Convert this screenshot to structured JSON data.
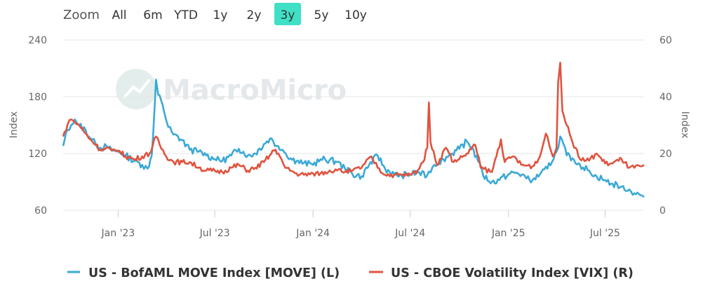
{
  "toolbar": {
    "zoom_label": "Zoom",
    "ranges": [
      "All",
      "6m",
      "YTD",
      "1y",
      "2y",
      "3y",
      "5y",
      "10y"
    ],
    "active_range": "3y"
  },
  "watermark": "MacroMicro",
  "colors": {
    "move": "#3aa9d6",
    "vix": "#e0533e",
    "active": "#3fe0c5"
  },
  "chart_data": {
    "type": "line",
    "y_left": {
      "title": "Index",
      "range": [
        60,
        240
      ],
      "ticks": [
        "60",
        "120",
        "180",
        "240"
      ]
    },
    "y_right": {
      "title": "Index",
      "range": [
        0,
        60
      ],
      "ticks": [
        "0",
        "20",
        "40",
        "60"
      ]
    },
    "x_range": [
      "2022-09-20",
      "2025-09-12"
    ],
    "x_ticks": [
      {
        "date": "2023-01-01",
        "label": "Jan '23"
      },
      {
        "date": "2023-07-01",
        "label": "Jul '23"
      },
      {
        "date": "2024-01-01",
        "label": "Jan '24"
      },
      {
        "date": "2024-07-01",
        "label": "Jul '24"
      },
      {
        "date": "2025-01-01",
        "label": "Jan '25"
      },
      {
        "date": "2025-07-01",
        "label": "Jul '25"
      }
    ],
    "grid": true,
    "legend_position": "bottom",
    "series": [
      {
        "name": "US - BofAML MOVE Index [MOVE] (L)",
        "axis": "left",
        "points": [
          [
            "2022-09-20",
            128
          ],
          [
            "2022-09-28",
            145
          ],
          [
            "2022-10-05",
            150
          ],
          [
            "2022-10-12",
            156
          ],
          [
            "2022-10-20",
            150
          ],
          [
            "2022-11-01",
            145
          ],
          [
            "2022-11-10",
            136
          ],
          [
            "2022-11-20",
            130
          ],
          [
            "2022-12-01",
            125
          ],
          [
            "2022-12-10",
            128
          ],
          [
            "2022-12-20",
            124
          ],
          [
            "2023-01-01",
            122
          ],
          [
            "2023-01-15",
            118
          ],
          [
            "2023-02-01",
            112
          ],
          [
            "2023-02-15",
            108
          ],
          [
            "2023-02-25",
            104
          ],
          [
            "2023-03-05",
            118
          ],
          [
            "2023-03-10",
            165
          ],
          [
            "2023-03-13",
            198
          ],
          [
            "2023-03-17",
            182
          ],
          [
            "2023-03-25",
            172
          ],
          [
            "2023-04-05",
            148
          ],
          [
            "2023-04-15",
            140
          ],
          [
            "2023-05-01",
            134
          ],
          [
            "2023-05-15",
            124
          ],
          [
            "2023-06-01",
            122
          ],
          [
            "2023-06-15",
            118
          ],
          [
            "2023-07-01",
            114
          ],
          [
            "2023-07-15",
            112
          ],
          [
            "2023-08-01",
            118
          ],
          [
            "2023-08-15",
            125
          ],
          [
            "2023-09-01",
            118
          ],
          [
            "2023-09-15",
            120
          ],
          [
            "2023-10-01",
            130
          ],
          [
            "2023-10-15",
            136
          ],
          [
            "2023-10-25",
            128
          ],
          [
            "2023-11-05",
            124
          ],
          [
            "2023-11-20",
            115
          ],
          [
            "2023-12-01",
            112
          ],
          [
            "2023-12-15",
            110
          ],
          [
            "2024-01-01",
            108
          ],
          [
            "2024-01-15",
            114
          ],
          [
            "2024-02-01",
            113
          ],
          [
            "2024-02-15",
            111
          ],
          [
            "2024-03-01",
            104
          ],
          [
            "2024-03-15",
            98
          ],
          [
            "2024-04-01",
            96
          ],
          [
            "2024-04-15",
            108
          ],
          [
            "2024-05-01",
            118
          ],
          [
            "2024-05-15",
            104
          ],
          [
            "2024-06-01",
            98
          ],
          [
            "2024-06-15",
            97
          ],
          [
            "2024-07-01",
            98
          ],
          [
            "2024-07-15",
            100
          ],
          [
            "2024-08-01",
            96
          ],
          [
            "2024-08-05",
            101
          ],
          [
            "2024-08-15",
            108
          ],
          [
            "2024-09-01",
            114
          ],
          [
            "2024-09-15",
            119
          ],
          [
            "2024-10-01",
            125
          ],
          [
            "2024-10-15",
            133
          ],
          [
            "2024-10-25",
            126
          ],
          [
            "2024-11-05",
            112
          ],
          [
            "2024-11-15",
            96
          ],
          [
            "2024-12-01",
            90
          ],
          [
            "2024-12-15",
            92
          ],
          [
            "2025-01-01",
            98
          ],
          [
            "2025-01-15",
            100
          ],
          [
            "2025-02-01",
            96
          ],
          [
            "2025-02-15",
            92
          ],
          [
            "2025-03-01",
            98
          ],
          [
            "2025-03-15",
            104
          ],
          [
            "2025-04-01",
            122
          ],
          [
            "2025-04-08",
            138
          ],
          [
            "2025-04-20",
            118
          ],
          [
            "2025-05-01",
            115
          ],
          [
            "2025-05-15",
            108
          ],
          [
            "2025-06-01",
            102
          ],
          [
            "2025-06-15",
            96
          ],
          [
            "2025-07-01",
            92
          ],
          [
            "2025-07-15",
            88
          ],
          [
            "2025-08-01",
            85
          ],
          [
            "2025-08-15",
            82
          ],
          [
            "2025-08-25",
            78
          ],
          [
            "2025-09-05",
            76
          ],
          [
            "2025-09-12",
            74
          ]
        ]
      },
      {
        "name": "US - CBOE Volatility Index [VIX] (R)",
        "axis": "right",
        "points": [
          [
            "2022-09-20",
            26
          ],
          [
            "2022-09-28",
            30
          ],
          [
            "2022-10-05",
            32
          ],
          [
            "2022-10-12",
            31
          ],
          [
            "2022-10-20",
            30
          ],
          [
            "2022-11-01",
            27
          ],
          [
            "2022-11-10",
            25
          ],
          [
            "2022-11-20",
            23
          ],
          [
            "2022-12-01",
            21
          ],
          [
            "2022-12-10",
            22
          ],
          [
            "2022-12-20",
            21
          ],
          [
            "2023-01-01",
            21
          ],
          [
            "2023-01-15",
            19
          ],
          [
            "2023-02-01",
            18
          ],
          [
            "2023-02-15",
            19
          ],
          [
            "2023-03-01",
            20
          ],
          [
            "2023-03-13",
            26
          ],
          [
            "2023-03-20",
            23
          ],
          [
            "2023-04-01",
            19
          ],
          [
            "2023-04-15",
            17
          ],
          [
            "2023-05-01",
            17
          ],
          [
            "2023-05-15",
            17
          ],
          [
            "2023-06-01",
            15
          ],
          [
            "2023-06-15",
            14
          ],
          [
            "2023-07-01",
            14
          ],
          [
            "2023-07-15",
            13.5
          ],
          [
            "2023-08-01",
            15
          ],
          [
            "2023-08-15",
            16
          ],
          [
            "2023-09-01",
            14
          ],
          [
            "2023-09-15",
            15
          ],
          [
            "2023-10-01",
            17
          ],
          [
            "2023-10-20",
            21
          ],
          [
            "2023-10-28",
            20
          ],
          [
            "2023-11-10",
            15
          ],
          [
            "2023-12-01",
            13
          ],
          [
            "2023-12-15",
            12.5
          ],
          [
            "2024-01-01",
            13
          ],
          [
            "2024-01-15",
            13
          ],
          [
            "2024-02-01",
            14
          ],
          [
            "2024-02-15",
            14
          ],
          [
            "2024-03-01",
            13.5
          ],
          [
            "2024-03-15",
            14
          ],
          [
            "2024-04-01",
            15
          ],
          [
            "2024-04-19",
            19
          ],
          [
            "2024-05-01",
            15
          ],
          [
            "2024-05-15",
            12.5
          ],
          [
            "2024-06-01",
            12.5
          ],
          [
            "2024-06-15",
            12.5
          ],
          [
            "2024-07-01",
            12.5
          ],
          [
            "2024-07-15",
            14
          ],
          [
            "2024-07-25",
            17
          ],
          [
            "2024-08-02",
            22
          ],
          [
            "2024-08-05",
            38
          ],
          [
            "2024-08-08",
            24
          ],
          [
            "2024-08-20",
            16
          ],
          [
            "2024-09-06",
            22
          ],
          [
            "2024-09-20",
            17
          ],
          [
            "2024-10-01",
            18
          ],
          [
            "2024-10-15",
            20
          ],
          [
            "2024-10-31",
            23
          ],
          [
            "2024-11-10",
            15
          ],
          [
            "2024-12-01",
            13.5
          ],
          [
            "2024-12-18",
            25
          ],
          [
            "2024-12-25",
            17
          ],
          [
            "2025-01-10",
            19
          ],
          [
            "2025-01-25",
            16
          ],
          [
            "2025-02-15",
            15.5
          ],
          [
            "2025-03-01",
            19
          ],
          [
            "2025-03-12",
            27
          ],
          [
            "2025-03-25",
            19
          ],
          [
            "2025-04-01",
            22
          ],
          [
            "2025-04-04",
            45
          ],
          [
            "2025-04-08",
            52
          ],
          [
            "2025-04-12",
            35
          ],
          [
            "2025-04-20",
            30
          ],
          [
            "2025-05-01",
            24
          ],
          [
            "2025-05-15",
            18
          ],
          [
            "2025-06-01",
            17.5
          ],
          [
            "2025-06-15",
            20
          ],
          [
            "2025-07-01",
            16.5
          ],
          [
            "2025-07-15",
            16.5
          ],
          [
            "2025-08-01",
            18
          ],
          [
            "2025-08-15",
            15
          ],
          [
            "2025-08-25",
            15
          ],
          [
            "2025-09-05",
            15.5
          ],
          [
            "2025-09-12",
            16
          ]
        ]
      }
    ]
  }
}
